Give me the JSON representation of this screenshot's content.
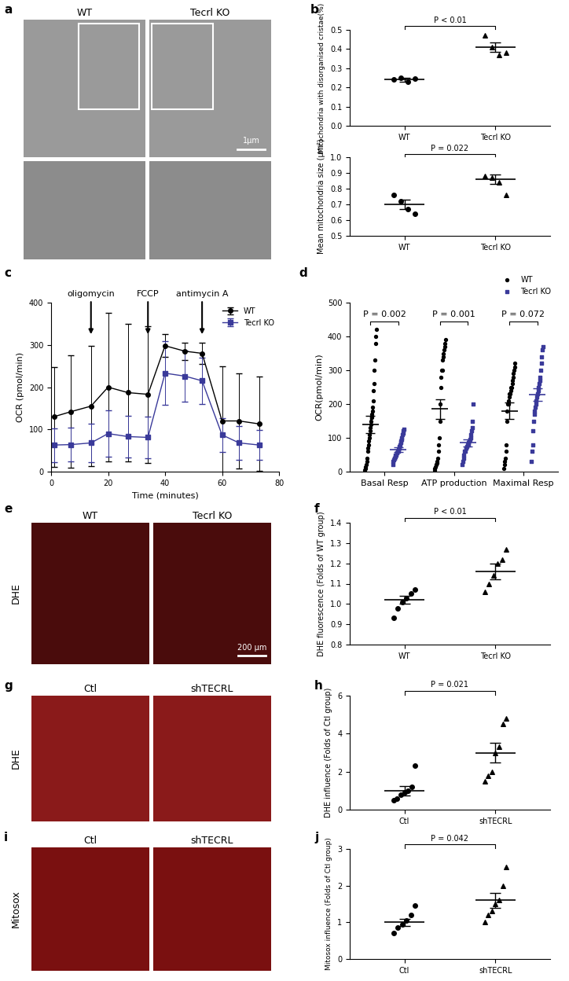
{
  "chart_data": [
    {
      "panel": "a",
      "type": "image",
      "labels": [
        "WT",
        "Tecrl KO"
      ],
      "scale_bar": "1μm"
    },
    {
      "panel": "b",
      "type": "dot",
      "categories": [
        "WT",
        "Tecrl KO"
      ],
      "ylabel": "Mitochondria with disorganised cristae(%)",
      "ylim": [
        0.0,
        0.5
      ],
      "yticks": [
        0.0,
        0.1,
        0.2,
        0.3,
        0.4,
        0.5
      ],
      "values": [
        [
          0.24,
          0.25,
          0.23,
          0.245
        ],
        [
          0.47,
          0.41,
          0.37,
          0.38
        ]
      ],
      "means": [
        0.24,
        0.41
      ],
      "errors": [
        0.01,
        0.025
      ],
      "markers": [
        "circle",
        "triangle"
      ],
      "annotation": "P < 0.01"
    },
    {
      "type": "dot",
      "categories": [
        "WT",
        "Tecrl KO"
      ],
      "ylabel": "Mean mitochondria size (μm²)",
      "ylim": [
        0.5,
        1.0
      ],
      "yticks": [
        0.5,
        0.6,
        0.7,
        0.8,
        0.9,
        1.0
      ],
      "values": [
        [
          0.76,
          0.72,
          0.67,
          0.64
        ],
        [
          0.88,
          0.87,
          0.84,
          0.76
        ]
      ],
      "means": [
        0.7,
        0.86
      ],
      "errors": [
        0.03,
        0.03
      ],
      "markers": [
        "circle",
        "triangle"
      ],
      "annotation": "P = 0.022"
    },
    {
      "panel": "c",
      "type": "line",
      "xlabel": "Time (minutes)",
      "ylabel": "OCR (pmol/min)",
      "xlim": [
        0,
        80
      ],
      "xticks": [
        0,
        20,
        40,
        60,
        80
      ],
      "ylim": [
        0,
        400
      ],
      "yticks": [
        0,
        100,
        200,
        300,
        400
      ],
      "x": [
        1,
        7,
        14,
        20,
        27,
        34,
        40,
        47,
        53,
        60,
        66,
        73
      ],
      "series": [
        {
          "name": "WT",
          "color": "#000000",
          "marker": "circle",
          "values": [
            130,
            142,
            155,
            200,
            187,
            183,
            298,
            285,
            280,
            120,
            120,
            113
          ],
          "errors": [
            118,
            133,
            142,
            175,
            163,
            162,
            27,
            20,
            25,
            130,
            112,
            112
          ]
        },
        {
          "name": "Tecrl KO",
          "color": "#3a3a9a",
          "marker": "square",
          "values": [
            63,
            64,
            68,
            90,
            83,
            81,
            233,
            226,
            215,
            87,
            68,
            63
          ],
          "errors": [
            40,
            40,
            45,
            55,
            50,
            50,
            75,
            60,
            55,
            40,
            40,
            35
          ]
        }
      ],
      "annotations": [
        {
          "text": "oligomycin",
          "x": 14
        },
        {
          "text": "FCCP",
          "x": 34
        },
        {
          "text": "antimycin A",
          "x": 53
        }
      ],
      "legend": "upper right"
    },
    {
      "panel": "d",
      "type": "strip",
      "ylabel": "OCR(pmol/min)",
      "categories": [
        "Basal Resp",
        "ATP production",
        "Maximal Resp"
      ],
      "ylim": [
        0,
        500
      ],
      "yticks": [
        0,
        100,
        200,
        300,
        400,
        500
      ],
      "series": [
        {
          "name": "WT",
          "color": "#000000",
          "marker": "circle",
          "values": [
            [
              5,
              10,
              15,
              20,
              30,
              40,
              60,
              70,
              80,
              90,
              100,
              110,
              120,
              130,
              140,
              150,
              160,
              170,
              180,
              190,
              210,
              240,
              260,
              300,
              330,
              380,
              400,
              420
            ],
            [
              5,
              10,
              15,
              20,
              20,
              25,
              30,
              40,
              60,
              80,
              100,
              150,
              200,
              250,
              280,
              300,
              300,
              330,
              340,
              350,
              360,
              370,
              380,
              390
            ],
            [
              10,
              20,
              30,
              40,
              60,
              80,
              150,
              180,
              200,
              200,
              210,
              220,
              230,
              230,
              240,
              250,
              250,
              260,
              270,
              280,
              290,
              300,
              310,
              320
            ]
          ],
          "means": [
            140,
            185,
            180
          ],
          "errors": [
            25,
            30,
            25
          ]
        },
        {
          "name": "Tecrl KO",
          "color": "#3a3a9a",
          "marker": "square",
          "values": [
            [
              20,
              30,
              35,
              40,
              40,
              45,
              50,
              50,
              55,
              55,
              60,
              60,
              65,
              70,
              75,
              80,
              85,
              90,
              95,
              100,
              110,
              115,
              120,
              125
            ],
            [
              20,
              30,
              40,
              50,
              60,
              60,
              70,
              70,
              75,
              80,
              80,
              85,
              90,
              95,
              100,
              110,
              120,
              130,
              150,
              200
            ],
            [
              30,
              60,
              80,
              120,
              150,
              170,
              180,
              190,
              200,
              210,
              220,
              230,
              240,
              250,
              260,
              270,
              280,
              300,
              320,
              340,
              360,
              370
            ]
          ],
          "means": [
            65,
            85,
            228
          ],
          "errors": [
            8,
            10,
            18
          ]
        }
      ],
      "p_values": [
        "P = 0.002",
        "P = 0.001",
        "P = 0.072"
      ],
      "legend": "upper right"
    },
    {
      "panel": "e",
      "type": "image",
      "labels": [
        "WT",
        "Tecrl KO"
      ],
      "row_label": "DHE",
      "scale_bar": "200 μm"
    },
    {
      "panel": "f",
      "type": "dot",
      "categories": [
        "WT",
        "Tecrl KO"
      ],
      "ylabel": "DHE fluorescence (Folds of WT group)",
      "ylim": [
        0.8,
        1.4
      ],
      "yticks": [
        0.8,
        0.9,
        1.0,
        1.1,
        1.2,
        1.3,
        1.4
      ],
      "values": [
        [
          0.93,
          0.98,
          1.01,
          1.03,
          1.05,
          1.07
        ],
        [
          1.06,
          1.1,
          1.14,
          1.2,
          1.22,
          1.27
        ]
      ],
      "means": [
        1.02,
        1.16
      ],
      "errors": [
        0.02,
        0.04
      ],
      "markers": [
        "circle",
        "triangle"
      ],
      "annotation": "P < 0.01"
    },
    {
      "panel": "g",
      "type": "image",
      "labels": [
        "Ctl",
        "shTECRL"
      ],
      "row_label": "DHE"
    },
    {
      "panel": "h",
      "type": "dot",
      "categories": [
        "Ctl",
        "shTECRL"
      ],
      "ylabel": "DHE influence (Folds of Ctl group)",
      "ylim": [
        0,
        6
      ],
      "yticks": [
        0,
        2,
        4,
        6
      ],
      "values": [
        [
          0.5,
          0.6,
          0.8,
          0.9,
          1.0,
          1.2,
          2.3
        ],
        [
          1.5,
          1.8,
          2.0,
          3.0,
          3.3,
          4.5,
          4.8
        ]
      ],
      "means": [
        1.0,
        3.0
      ],
      "errors": [
        0.25,
        0.5
      ],
      "markers": [
        "circle",
        "triangle"
      ],
      "annotation": "P = 0.021"
    },
    {
      "panel": "i",
      "type": "image",
      "labels": [
        "Ctl",
        "shTECRL"
      ],
      "row_label": "Mitosox"
    },
    {
      "panel": "j",
      "type": "dot",
      "categories": [
        "Ctl",
        "shTECRL"
      ],
      "ylabel": "Mitosox influence (Folds of Ctl group)",
      "ylim": [
        0,
        3
      ],
      "yticks": [
        0,
        1,
        2,
        3
      ],
      "values": [
        [
          0.7,
          0.85,
          0.95,
          1.05,
          1.2,
          1.45
        ],
        [
          1.0,
          1.2,
          1.3,
          1.5,
          1.6,
          2.0,
          2.5
        ]
      ],
      "means": [
        1.0,
        1.6
      ],
      "errors": [
        0.1,
        0.2
      ],
      "markers": [
        "circle",
        "triangle"
      ],
      "annotation": "P = 0.042"
    }
  ]
}
